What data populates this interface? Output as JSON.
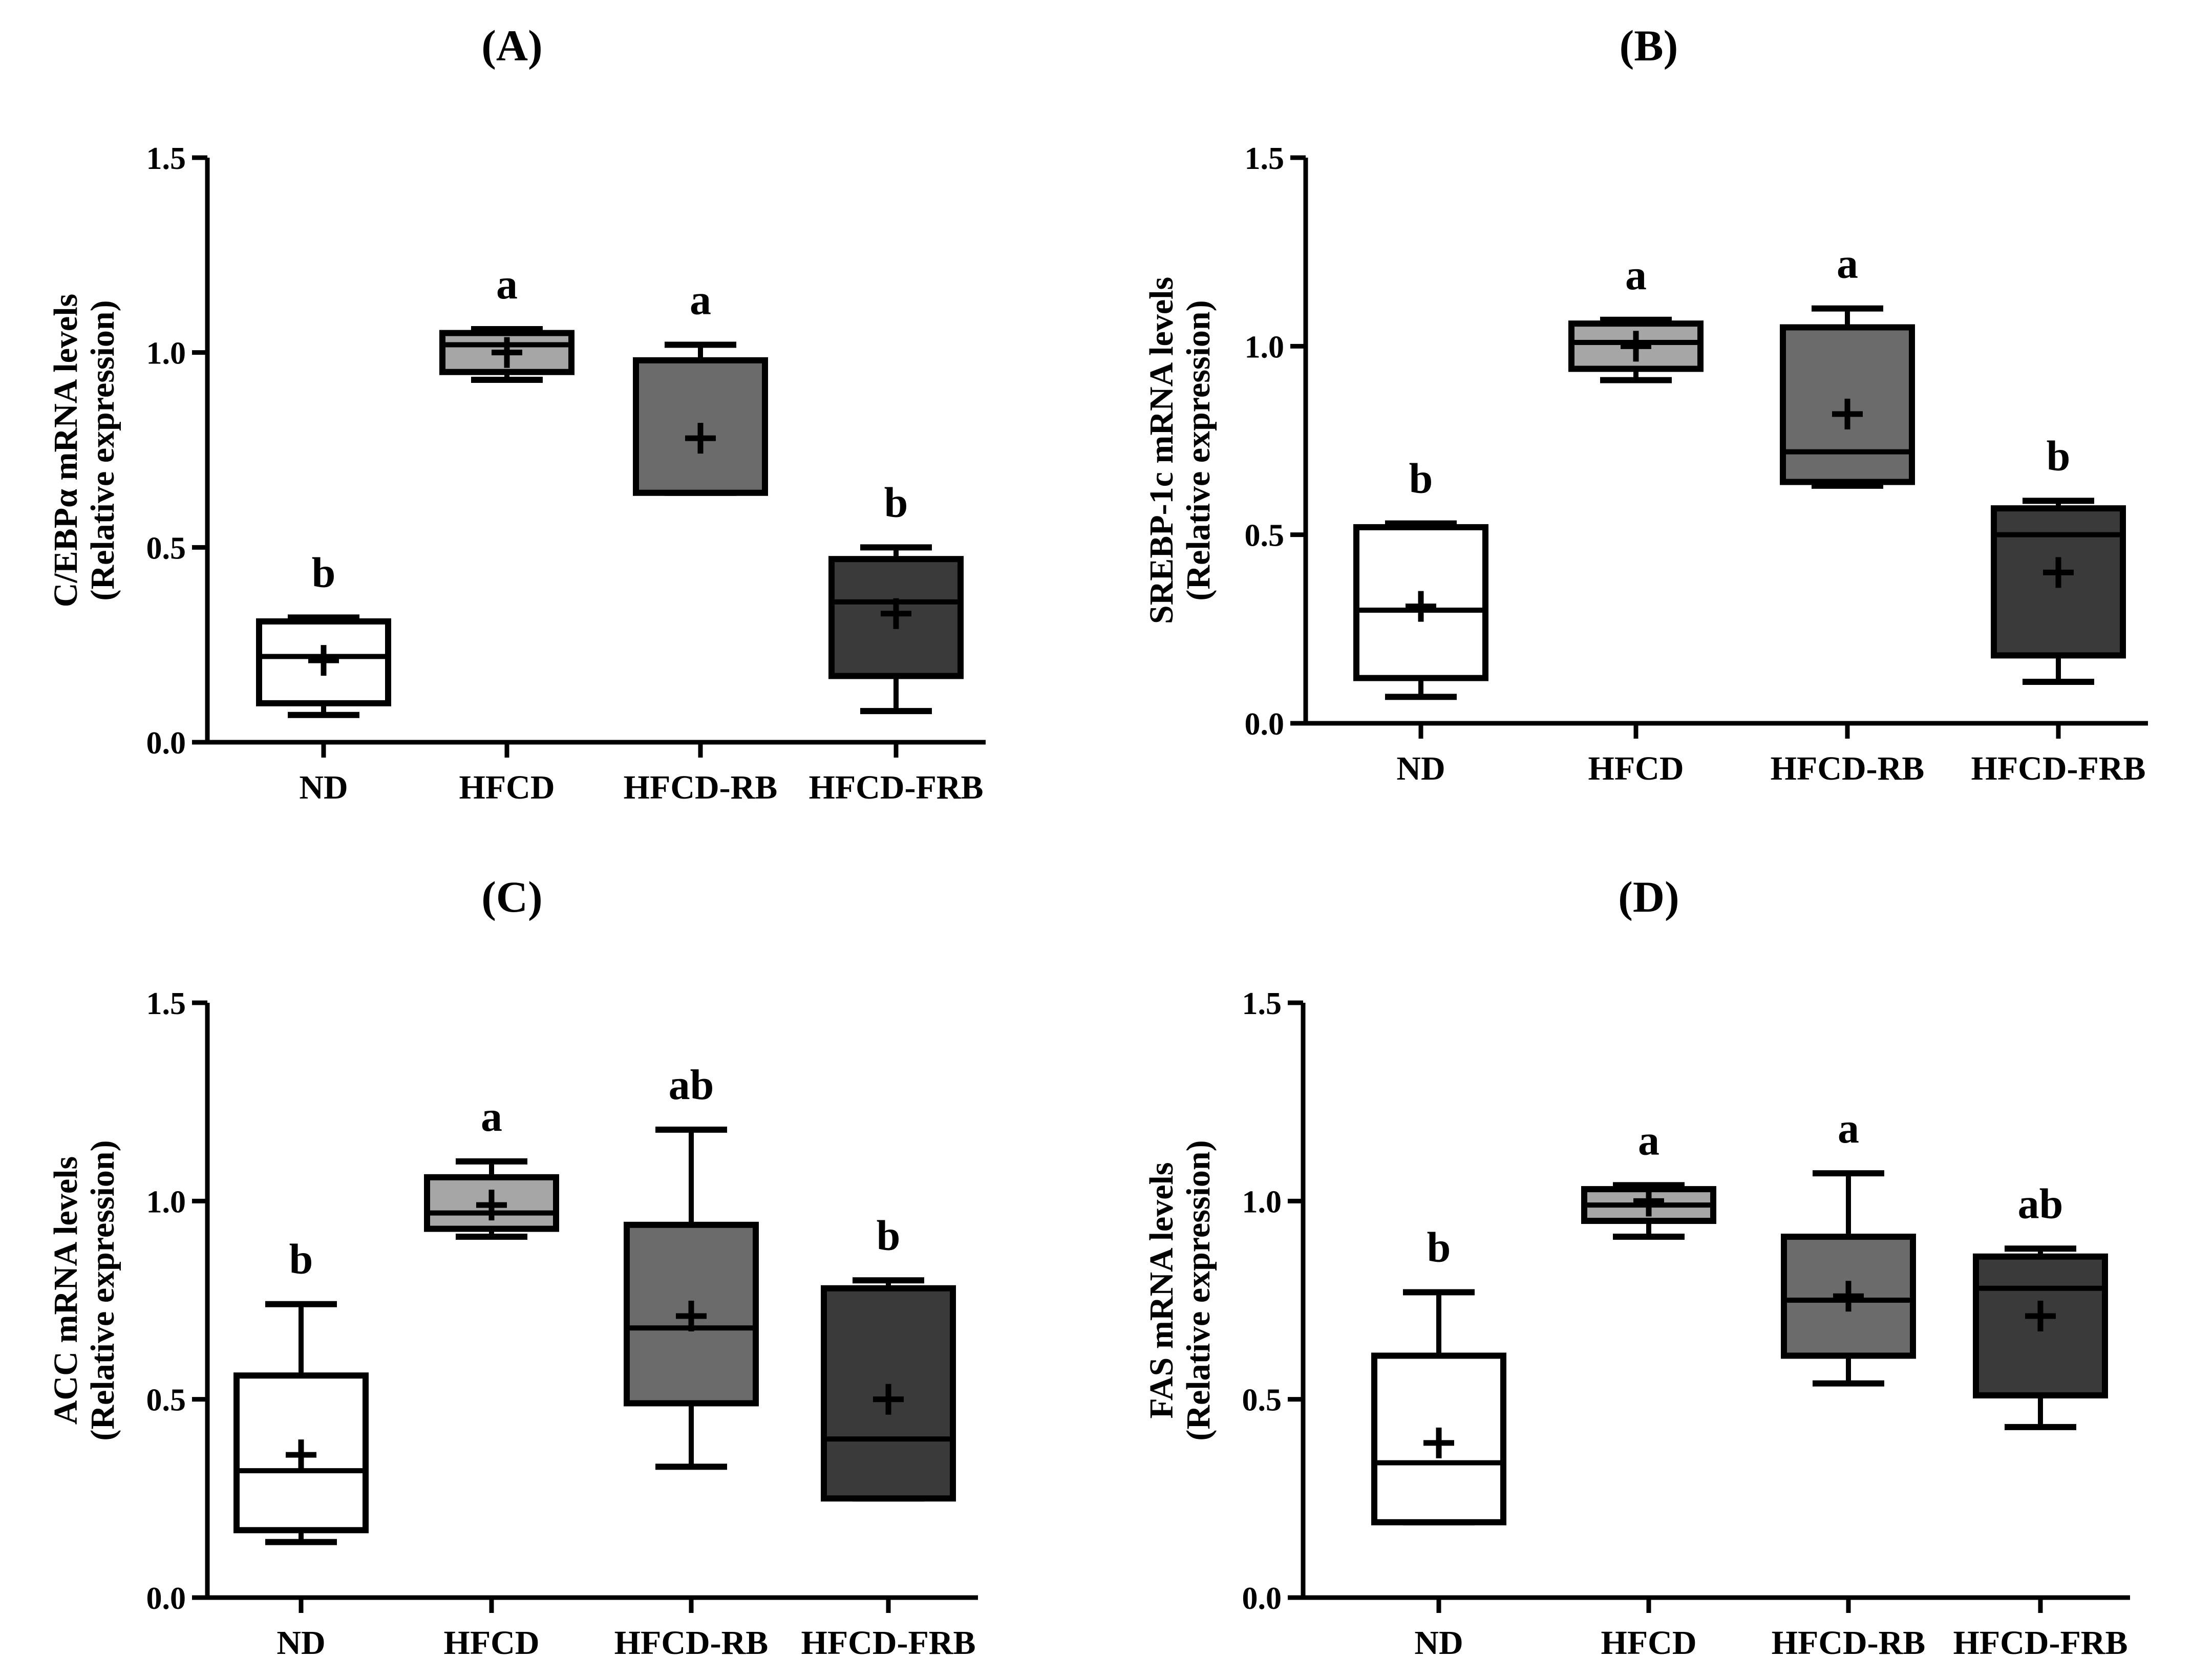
{
  "figure": {
    "colors": {
      "ND": "#ffffff",
      "HFCD": "#a6a6a6",
      "HFCD-RB": "#6b6b6b",
      "HFCD-FRB": "#3a3a3a",
      "stroke": "#000000"
    }
  },
  "chart_data": [
    {
      "type": "box",
      "title": "(A)",
      "ylabel_line1": "C/EBPα mRNA levels",
      "ylabel_line2": "(Relative expression)",
      "ylim": [
        0,
        1.5
      ],
      "yticks": [
        "0.0",
        "0.5",
        "1.0",
        "1.5"
      ],
      "categories": [
        "ND",
        "HFCD",
        "HFCD-RB",
        "HFCD-FRB"
      ],
      "boxes": [
        {
          "min": 0.07,
          "q1": 0.1,
          "median": 0.22,
          "q3": 0.31,
          "max": 0.32,
          "mean": 0.21
        },
        {
          "min": 0.93,
          "q1": 0.95,
          "median": 1.02,
          "q3": 1.05,
          "max": 1.06,
          "mean": 1.0
        },
        {
          "min": 0.64,
          "q1": 0.64,
          "median": 0.64,
          "q3": 0.98,
          "max": 1.02,
          "mean": 0.78
        },
        {
          "min": 0.08,
          "q1": 0.17,
          "median": 0.36,
          "q3": 0.47,
          "max": 0.5,
          "mean": 0.33
        }
      ],
      "significance": [
        "b",
        "a",
        "a",
        "b"
      ]
    },
    {
      "type": "box",
      "title": "(B)",
      "ylabel_line1": "SREBP-1c mRNA levels",
      "ylabel_line2": "(Relative expression)",
      "ylim": [
        0,
        1.5
      ],
      "yticks": [
        "0.0",
        "0.5",
        "1.0",
        "1.5"
      ],
      "categories": [
        "ND",
        "HFCD",
        "HFCD-RB",
        "HFCD-FRB"
      ],
      "boxes": [
        {
          "min": 0.07,
          "q1": 0.12,
          "median": 0.3,
          "q3": 0.52,
          "max": 0.53,
          "mean": 0.31
        },
        {
          "min": 0.91,
          "q1": 0.94,
          "median": 1.01,
          "q3": 1.06,
          "max": 1.07,
          "mean": 1.0
        },
        {
          "min": 0.63,
          "q1": 0.64,
          "median": 0.72,
          "q3": 1.05,
          "max": 1.1,
          "mean": 0.82
        },
        {
          "min": 0.11,
          "q1": 0.18,
          "median": 0.5,
          "q3": 0.57,
          "max": 0.59,
          "mean": 0.4
        }
      ],
      "significance": [
        "b",
        "a",
        "a",
        "b"
      ]
    },
    {
      "type": "box",
      "title": "(C)",
      "ylabel_line1": "ACC mRNA levels",
      "ylabel_line2": "(Relative expression)",
      "ylim": [
        0,
        1.5
      ],
      "yticks": [
        "0.0",
        "0.5",
        "1.0",
        "1.5"
      ],
      "categories": [
        "ND",
        "HFCD",
        "HFCD-RB",
        "HFCD-FRB"
      ],
      "boxes": [
        {
          "min": 0.14,
          "q1": 0.17,
          "median": 0.32,
          "q3": 0.56,
          "max": 0.74,
          "mean": 0.36
        },
        {
          "min": 0.91,
          "q1": 0.93,
          "median": 0.97,
          "q3": 1.06,
          "max": 1.1,
          "mean": 0.99
        },
        {
          "min": 0.33,
          "q1": 0.49,
          "median": 0.68,
          "q3": 0.94,
          "max": 1.18,
          "mean": 0.71
        },
        {
          "min": 0.25,
          "q1": 0.25,
          "median": 0.4,
          "q3": 0.78,
          "max": 0.8,
          "mean": 0.5
        }
      ],
      "significance": [
        "b",
        "a",
        "ab",
        "b"
      ]
    },
    {
      "type": "box",
      "title": "(D)",
      "ylabel_line1": "FAS mRNA levels",
      "ylabel_line2": "(Relative expression)",
      "ylim": [
        0,
        1.5
      ],
      "yticks": [
        "0.0",
        "0.5",
        "1.0",
        "1.5"
      ],
      "categories": [
        "ND",
        "HFCD",
        "HFCD-RB",
        "HFCD-FRB"
      ],
      "boxes": [
        {
          "min": 0.19,
          "q1": 0.19,
          "median": 0.34,
          "q3": 0.61,
          "max": 0.77,
          "mean": 0.39
        },
        {
          "min": 0.91,
          "q1": 0.95,
          "median": 0.99,
          "q3": 1.03,
          "max": 1.04,
          "mean": 1.0
        },
        {
          "min": 0.54,
          "q1": 0.61,
          "median": 0.75,
          "q3": 0.91,
          "max": 1.07,
          "mean": 0.76
        },
        {
          "min": 0.43,
          "q1": 0.51,
          "median": 0.78,
          "q3": 0.86,
          "max": 0.88,
          "mean": 0.71
        }
      ],
      "significance": [
        "b",
        "a",
        "a",
        "ab"
      ]
    }
  ]
}
